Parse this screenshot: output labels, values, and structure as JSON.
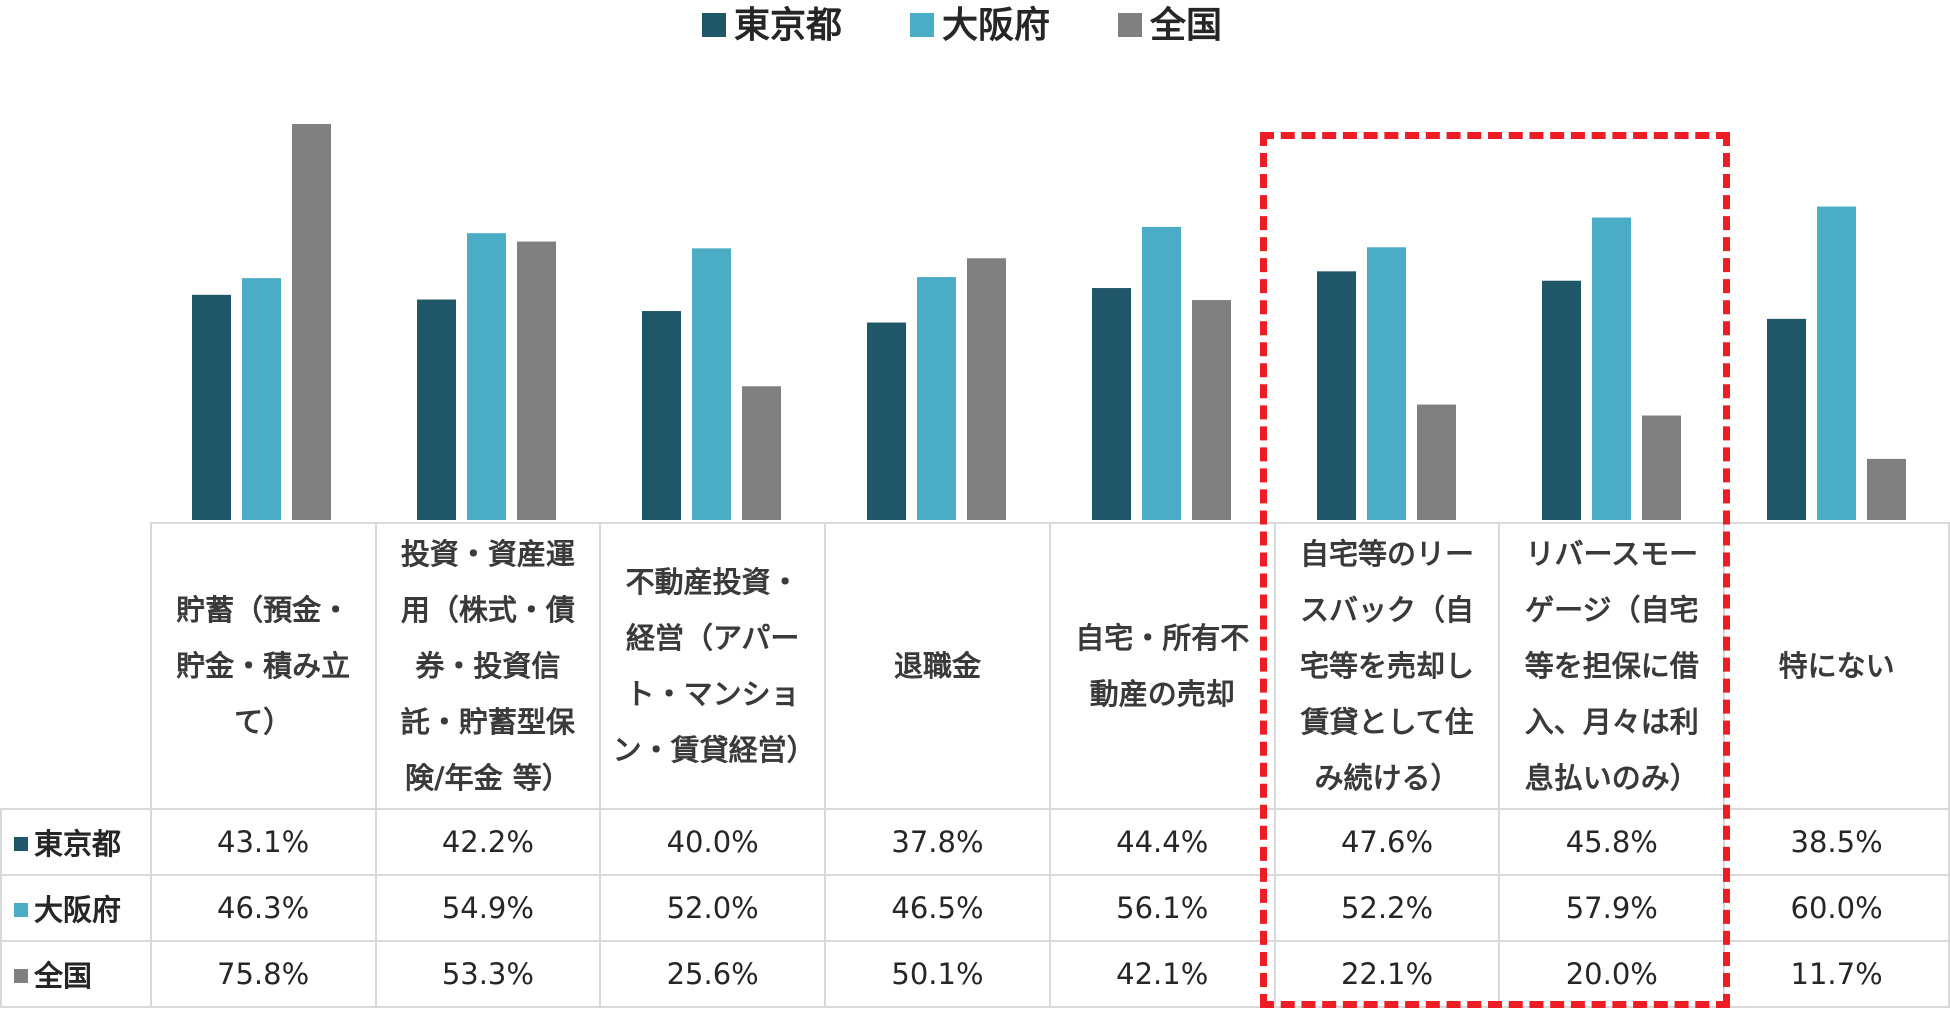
{
  "colors": {
    "tokyo": "#1f5668",
    "osaka": "#4bacc6",
    "national": "#808080",
    "highlight": "#ee1c25"
  },
  "chart_data": {
    "type": "bar",
    "title": "",
    "xlabel": "",
    "ylabel": "",
    "ylim": [
      0,
      80
    ],
    "grid": false,
    "legend_position": "top-center",
    "categories": [
      "貯蓄（預金・貯金・積み立て）",
      "投資・資産運用（株式・債券・投資信託・貯蓄型保険/年金 等）",
      "不動産投資・経営（アパート・マンション・賃貸経営）",
      "退職金",
      "自宅・所有不動産の売却",
      "自宅等のリースバック（自宅等を売却し賃貸として住み続ける）",
      "リバースモーゲージ（自宅等を担保に借入、月々は利息払いのみ）",
      "特にない"
    ],
    "series": [
      {
        "name": "東京都",
        "values": [
          43.1,
          42.2,
          40.0,
          37.8,
          44.4,
          47.6,
          45.8,
          38.5
        ],
        "labels": [
          "43.1%",
          "42.2%",
          "40.0%",
          "37.8%",
          "44.4%",
          "47.6%",
          "45.8%",
          "38.5%"
        ]
      },
      {
        "name": "大阪府",
        "values": [
          46.3,
          54.9,
          52.0,
          46.5,
          56.1,
          52.2,
          57.9,
          60.0
        ],
        "labels": [
          "46.3%",
          "54.9%",
          "52.0%",
          "46.5%",
          "56.1%",
          "52.2%",
          "57.9%",
          "60.0%"
        ]
      },
      {
        "name": "全国",
        "values": [
          75.8,
          53.3,
          25.6,
          50.1,
          42.1,
          22.1,
          20.0,
          11.7
        ],
        "labels": [
          "75.8%",
          "53.3%",
          "25.6%",
          "50.1%",
          "42.1%",
          "22.1%",
          "20.0%",
          "11.7%"
        ]
      }
    ],
    "highlighted_categories": [
      5,
      6
    ]
  }
}
